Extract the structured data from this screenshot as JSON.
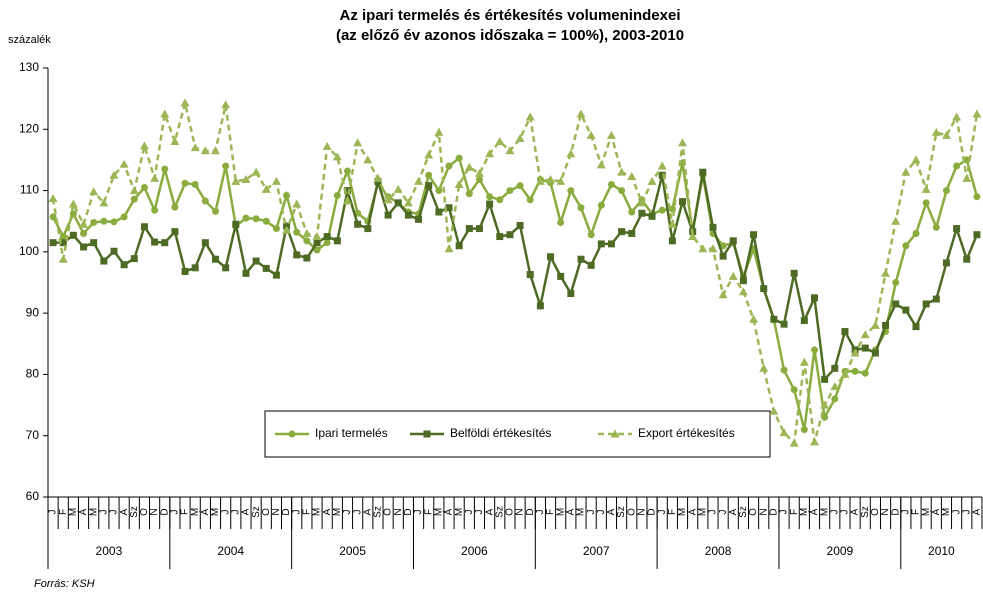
{
  "chart_data": {
    "type": "line",
    "title": [
      "Az ipari termelés és értékesítés volumenindexei",
      "(az előző év azonos időszaka = 100%), 2003-2010"
    ],
    "ylabel": "százalék",
    "source": "Forrás: KSH",
    "years": [
      "2003",
      "2004",
      "2005",
      "2006",
      "2007",
      "2008",
      "2009",
      "2010"
    ],
    "categories": [
      "J",
      "F",
      "M",
      "Á",
      "M",
      "J",
      "J",
      "A",
      "Sz",
      "O",
      "N",
      "D",
      "J",
      "F",
      "M",
      "Á",
      "M",
      "J",
      "J",
      "A",
      "Sz",
      "O",
      "N",
      "D",
      "J",
      "F",
      "M",
      "Á",
      "M",
      "J",
      "J",
      "A",
      "Sz",
      "O",
      "N",
      "D",
      "J",
      "F",
      "M",
      "Á",
      "M",
      "J",
      "J",
      "A",
      "Sz",
      "O",
      "N",
      "D",
      "J",
      "F",
      "M",
      "Á",
      "M",
      "J",
      "J",
      "A",
      "Sz",
      "O",
      "N",
      "D",
      "J",
      "F",
      "M",
      "Á",
      "M",
      "J",
      "J",
      "A",
      "Sz",
      "O",
      "N",
      "D",
      "J",
      "F",
      "M",
      "Á",
      "M",
      "J",
      "J",
      "A",
      "Sz",
      "O",
      "N",
      "D",
      "J",
      "F",
      "M",
      "Á",
      "M",
      "J",
      "J",
      "A"
    ],
    "ylim": [
      60,
      130
    ],
    "yticks": [
      60,
      70,
      80,
      90,
      100,
      110,
      120,
      130
    ],
    "legend": "inside-bottom-center",
    "series": [
      {
        "name": "Ipari termelés",
        "color": "#8aab3d",
        "dash": false,
        "marker": "circle",
        "values": [
          105.7,
          102.5,
          106.2,
          103,
          104.8,
          105,
          104.9,
          105.7,
          108.6,
          110.5,
          106.8,
          113.5,
          107.3,
          111.2,
          111,
          108.3,
          106.6,
          114,
          104.2,
          105.5,
          105.4,
          105,
          103.8,
          109.2,
          103.2,
          101.8,
          100.3,
          101.5,
          109.2,
          113.2,
          106.3,
          105,
          111.2,
          109,
          108,
          106.5,
          106.2,
          112.5,
          110,
          114,
          115.3,
          109.5,
          111.8,
          109,
          108.5,
          110,
          110.8,
          108.5,
          111.8,
          111.3,
          104.8,
          110,
          107.2,
          102.8,
          107.6,
          111,
          110,
          106.5,
          108.5,
          106.2,
          106.8,
          107,
          114.5,
          103.3,
          112.5,
          103,
          101,
          101.5,
          96,
          100.5,
          94,
          89,
          80.7,
          77.5,
          71,
          84,
          73,
          76,
          80.5,
          80.5,
          80.2,
          84,
          87,
          95,
          101,
          103,
          108,
          104,
          110,
          114,
          115,
          109
        ]
      },
      {
        "name": "Belföldi értékesítés",
        "color": "#4e6b25",
        "dash": false,
        "marker": "square",
        "values": [
          101.5,
          101.5,
          102.7,
          100.8,
          101.5,
          98.5,
          100.1,
          97.9,
          98.9,
          104.1,
          101.6,
          101.5,
          103.3,
          96.8,
          97.4,
          101.5,
          98.8,
          97.4,
          104.5,
          96.5,
          98.5,
          97.3,
          96.2,
          104.2,
          99.5,
          99,
          101.5,
          102.5,
          101.8,
          110,
          104.5,
          103.8,
          111.5,
          106,
          108,
          106,
          105.3,
          110.8,
          106.5,
          107.2,
          101,
          103.8,
          103.8,
          107.8,
          102.5,
          102.8,
          104.3,
          96.3,
          91.2,
          99.2,
          96,
          93.2,
          98.8,
          97.8,
          101.3,
          101.3,
          103.3,
          103,
          106.3,
          105.8,
          112.5,
          101.8,
          108.2,
          103.3,
          113,
          104,
          99.3,
          101.8,
          95.3,
          102.8,
          94,
          89,
          88.2,
          96.5,
          88.8,
          92.5,
          79.2,
          81,
          87,
          84,
          84.3,
          83.5,
          88,
          91.5,
          90.5,
          87.8,
          91.5,
          92.3,
          98.2,
          103.8,
          98.8,
          102.8
        ]
      },
      {
        "name": "Export értékesítés",
        "color": "#9db655",
        "dash": true,
        "marker": "triangle",
        "values": [
          108.7,
          98.8,
          107.8,
          104.5,
          109.8,
          108,
          112.5,
          114.3,
          110,
          117.3,
          112,
          122.5,
          118,
          124.3,
          117,
          116.5,
          116.5,
          124,
          111.5,
          111.8,
          113,
          110.2,
          111.5,
          103.5,
          107.8,
          103,
          102.5,
          117.2,
          115.5,
          108.3,
          117.8,
          115,
          112,
          108.5,
          110.2,
          108,
          111.5,
          115.8,
          119.5,
          100.5,
          111,
          113.8,
          112.8,
          116,
          118,
          116.5,
          118.5,
          122,
          111.5,
          111.8,
          111.5,
          116,
          122.5,
          119,
          114.2,
          119,
          113,
          112.3,
          108,
          111.5,
          114,
          104.5,
          117.8,
          102.5,
          100.5,
          100.5,
          93,
          96,
          93.5,
          89,
          81,
          74,
          70.5,
          68.8,
          82,
          69,
          75,
          78,
          80,
          83.5,
          86.5,
          88,
          96.5,
          105,
          113,
          115,
          110.2,
          119.5,
          119,
          122,
          112,
          122.5
        ]
      }
    ]
  }
}
